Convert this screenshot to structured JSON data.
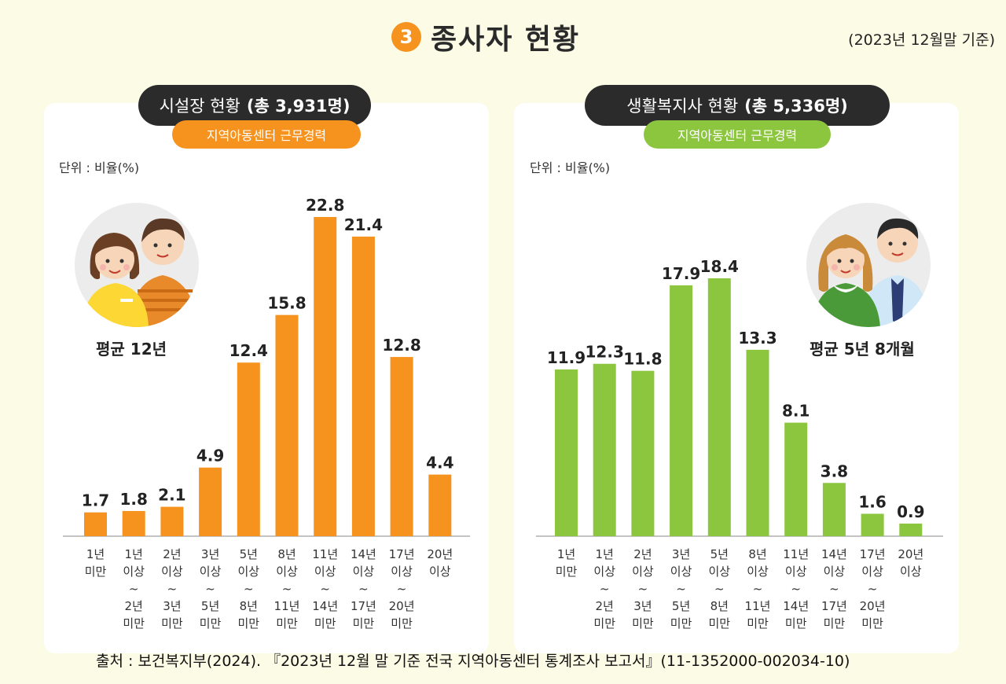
{
  "header": {
    "number": "3",
    "title": "종사자 현황",
    "date_note": "(2023년 12월말 기준)"
  },
  "panels": {
    "left": {
      "title_main": "시설장 현황",
      "title_count": "(총 3,931명)",
      "subtitle": "지역아동센터 근무경력",
      "unit": "단위 : 비율(%)",
      "avg_label": "평균",
      "avg_value": "12년"
    },
    "right": {
      "title_main": "생활복지사 현황",
      "title_count": "(총 5,336명)",
      "subtitle": "지역아동센터 근무경력",
      "unit": "단위 : 비율(%)",
      "avg_label": "평균",
      "avg_value": "5년 8개월"
    }
  },
  "colors": {
    "orange": "#f6921e",
    "green": "#8cc63f",
    "dark": "#2b2b2b"
  },
  "chart_data": [
    {
      "type": "bar",
      "categories": [
        [
          "1년",
          "미만"
        ],
        [
          "1년",
          "이상",
          "~",
          "2년",
          "미만"
        ],
        [
          "2년",
          "이상",
          "~",
          "3년",
          "미만"
        ],
        [
          "3년",
          "이상",
          "~",
          "5년",
          "미만"
        ],
        [
          "5년",
          "이상",
          "~",
          "8년",
          "미만"
        ],
        [
          "8년",
          "이상",
          "~",
          "11년",
          "미만"
        ],
        [
          "11년",
          "이상",
          "~",
          "14년",
          "미만"
        ],
        [
          "14년",
          "이상",
          "~",
          "17년",
          "미만"
        ],
        [
          "17년",
          "이상",
          "~",
          "20년",
          "미만"
        ],
        [
          "20년",
          "이상"
        ]
      ],
      "values": [
        1.7,
        1.8,
        2.1,
        4.9,
        12.4,
        15.8,
        22.8,
        21.4,
        12.8,
        4.4
      ],
      "labels": [
        "1.7",
        "1.8",
        "2.1",
        "4.9",
        "12.4",
        "15.8",
        "22.8",
        "21.4",
        "12.8",
        "4.4"
      ],
      "color": "#f6921e",
      "ylim": [
        0,
        22.8
      ]
    },
    {
      "type": "bar",
      "categories": [
        [
          "1년",
          "미만"
        ],
        [
          "1년",
          "이상",
          "~",
          "2년",
          "미만"
        ],
        [
          "2년",
          "이상",
          "~",
          "3년",
          "미만"
        ],
        [
          "3년",
          "이상",
          "~",
          "5년",
          "미만"
        ],
        [
          "5년",
          "이상",
          "~",
          "8년",
          "미만"
        ],
        [
          "8년",
          "이상",
          "~",
          "11년",
          "미만"
        ],
        [
          "11년",
          "이상",
          "~",
          "14년",
          "미만"
        ],
        [
          "14년",
          "이상",
          "~",
          "17년",
          "미만"
        ],
        [
          "17년",
          "이상",
          "~",
          "20년",
          "미만"
        ],
        [
          "20년",
          "이상"
        ]
      ],
      "values": [
        11.9,
        12.3,
        11.8,
        17.9,
        18.4,
        13.3,
        8.1,
        3.8,
        1.6,
        0.9
      ],
      "labels": [
        "11.9",
        "12.3",
        "11.8",
        "17.9",
        "18.4",
        "13.3",
        "8.1",
        "3.8",
        "1.6",
        "0.9"
      ],
      "color": "#8cc63f",
      "ylim": [
        0,
        18.4
      ]
    }
  ],
  "source": "출처 : 보건복지부(2024). 『2023년 12월 말 기준 전국 지역아동센터 통계조사 보고서』(11-1352000-002034-10)"
}
